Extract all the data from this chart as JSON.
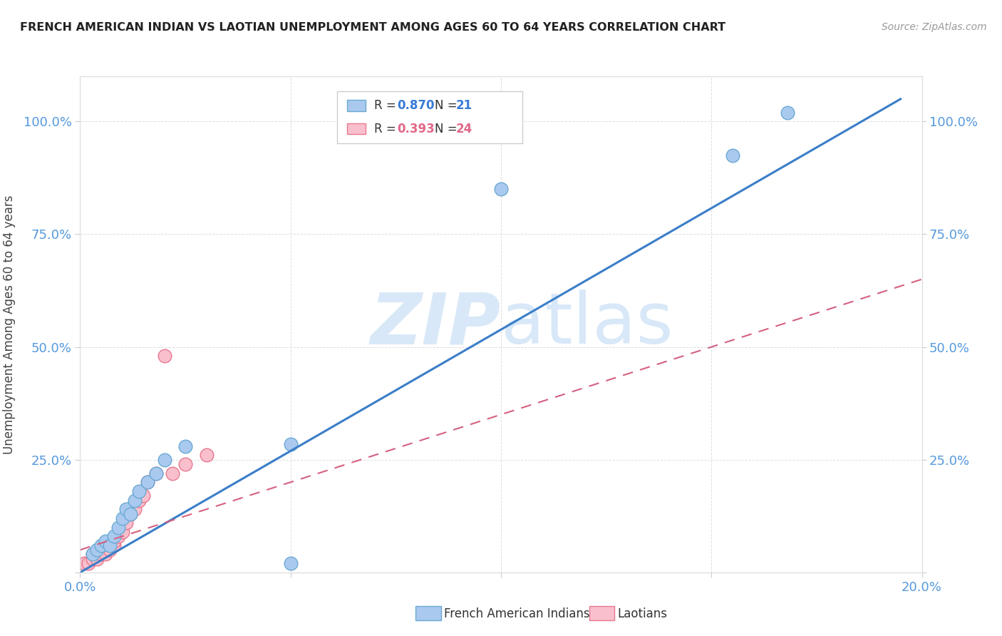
{
  "title": "FRENCH AMERICAN INDIAN VS LAOTIAN UNEMPLOYMENT AMONG AGES 60 TO 64 YEARS CORRELATION CHART",
  "source": "Source: ZipAtlas.com",
  "ylabel": "Unemployment Among Ages 60 to 64 years",
  "xlim": [
    0.0,
    0.2
  ],
  "ylim": [
    0.0,
    1.1
  ],
  "xticks": [
    0.0,
    0.05,
    0.1,
    0.15,
    0.2
  ],
  "xticklabels": [
    "0.0%",
    "",
    "",
    "",
    "20.0%"
  ],
  "yticks": [
    0.0,
    0.25,
    0.5,
    0.75,
    1.0
  ],
  "ytick_labels": [
    "",
    "25.0%",
    "50.0%",
    "75.0%",
    "100.0%"
  ],
  "blue_color": "#aac9ee",
  "blue_edge": "#6aaad4",
  "pink_color": "#f9bfcc",
  "pink_edge": "#e87890",
  "blue_line_color": "#3a7ec8",
  "pink_line_color": "#d46080",
  "tick_color": "#5599dd",
  "watermark_color": "#d8e8f8",
  "blue_scatter_x": [
    0.003,
    0.004,
    0.005,
    0.006,
    0.007,
    0.008,
    0.009,
    0.01,
    0.011,
    0.012,
    0.013,
    0.014,
    0.016,
    0.018,
    0.02,
    0.025,
    0.05,
    0.1,
    0.155,
    0.168,
    0.05
  ],
  "blue_scatter_y": [
    0.04,
    0.05,
    0.06,
    0.07,
    0.06,
    0.08,
    0.1,
    0.12,
    0.14,
    0.13,
    0.16,
    0.18,
    0.2,
    0.22,
    0.25,
    0.28,
    0.285,
    0.85,
    0.925,
    1.02,
    0.02
  ],
  "pink_scatter_x": [
    0.001,
    0.002,
    0.003,
    0.003,
    0.004,
    0.005,
    0.005,
    0.006,
    0.007,
    0.008,
    0.008,
    0.009,
    0.01,
    0.011,
    0.012,
    0.013,
    0.014,
    0.015,
    0.016,
    0.018,
    0.02,
    0.022,
    0.025,
    0.03
  ],
  "pink_scatter_y": [
    0.02,
    0.02,
    0.03,
    0.04,
    0.03,
    0.04,
    0.05,
    0.04,
    0.05,
    0.06,
    0.07,
    0.08,
    0.09,
    0.11,
    0.13,
    0.14,
    0.16,
    0.17,
    0.2,
    0.22,
    0.48,
    0.22,
    0.24,
    0.26
  ],
  "blue_line_x0": 0.0,
  "blue_line_y0": 0.0,
  "blue_line_x1": 0.195,
  "blue_line_y1": 1.05,
  "pink_line_x0": 0.0,
  "pink_line_y0": 0.05,
  "pink_line_x1": 0.2,
  "pink_line_y1": 0.65
}
